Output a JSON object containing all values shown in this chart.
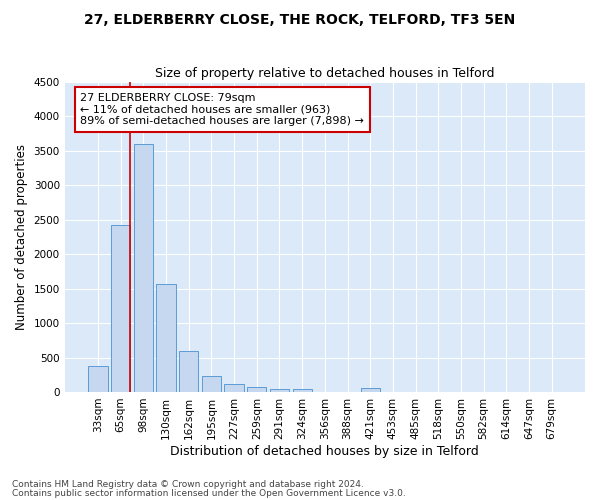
{
  "title": "27, ELDERBERRY CLOSE, THE ROCK, TELFORD, TF3 5EN",
  "subtitle": "Size of property relative to detached houses in Telford",
  "xlabel": "Distribution of detached houses by size in Telford",
  "ylabel": "Number of detached properties",
  "footnote1": "Contains HM Land Registry data © Crown copyright and database right 2024.",
  "footnote2": "Contains public sector information licensed under the Open Government Licence v3.0.",
  "categories": [
    "33sqm",
    "65sqm",
    "98sqm",
    "130sqm",
    "162sqm",
    "195sqm",
    "227sqm",
    "259sqm",
    "291sqm",
    "324sqm",
    "356sqm",
    "388sqm",
    "421sqm",
    "453sqm",
    "485sqm",
    "518sqm",
    "550sqm",
    "582sqm",
    "614sqm",
    "647sqm",
    "679sqm"
  ],
  "values": [
    380,
    2420,
    3600,
    1570,
    600,
    230,
    110,
    70,
    50,
    45,
    0,
    0,
    60,
    0,
    0,
    0,
    0,
    0,
    0,
    0,
    0
  ],
  "bar_color": "#c5d8f0",
  "bar_edge_color": "#5b9bd5",
  "vline_color": "#cc0000",
  "vline_pos": 1.42,
  "annotation_text": "27 ELDERBERRY CLOSE: 79sqm\n← 11% of detached houses are smaller (963)\n89% of semi-detached houses are larger (7,898) →",
  "annotation_box_facecolor": "#ffffff",
  "annotation_box_edgecolor": "#cc0000",
  "ylim": [
    0,
    4500
  ],
  "yticks": [
    0,
    500,
    1000,
    1500,
    2000,
    2500,
    3000,
    3500,
    4000,
    4500
  ],
  "axes_bg": "#dce9f8",
  "fig_bg": "#ffffff",
  "title_fontsize": 10,
  "subtitle_fontsize": 9,
  "tick_fontsize": 7.5,
  "ylabel_fontsize": 8.5,
  "xlabel_fontsize": 9,
  "annotation_fontsize": 8,
  "footnote_fontsize": 6.5
}
